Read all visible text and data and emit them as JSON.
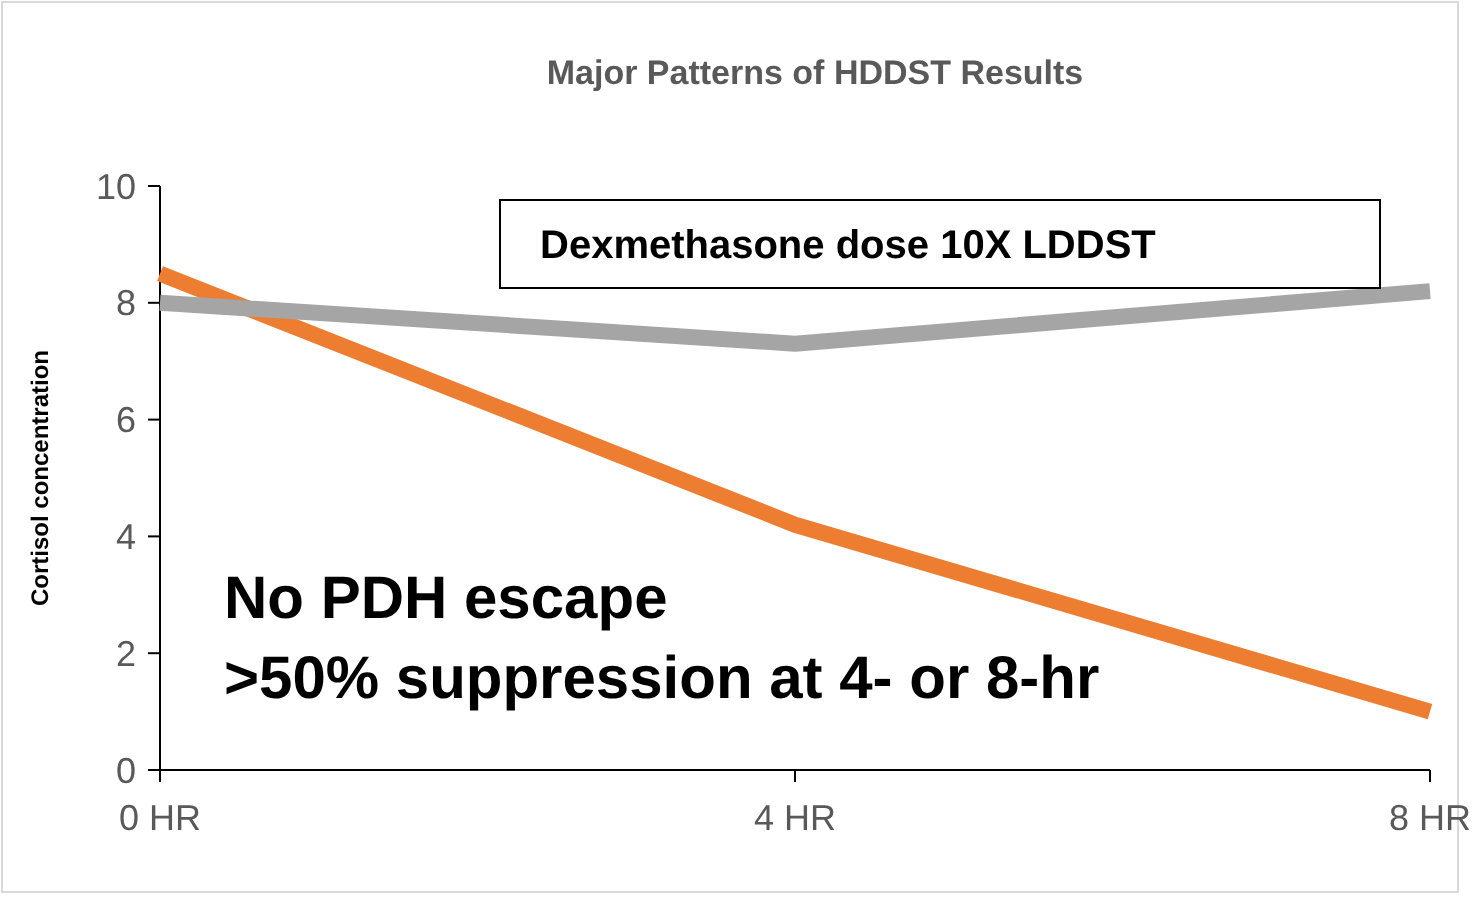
{
  "chart_data": {
    "type": "line",
    "title": "Major Patterns of HDDST Results",
    "ylabel": "Cortisol concentration",
    "categories": [
      "0 HR",
      "4 HR",
      "8 HR"
    ],
    "series": [
      {
        "color": "#ed7d31",
        "values": [
          8.5,
          4.2,
          1.0
        ]
      },
      {
        "color": "#a5a5a5",
        "values": [
          8.0,
          7.3,
          8.2
        ]
      }
    ],
    "ylim": [
      0,
      10
    ],
    "yticks": [
      0,
      2,
      4,
      6,
      8,
      10
    ],
    "grid": false,
    "marker": "none",
    "line_style": "solid",
    "annotations": [
      "Dexmethasone dose 10X LDDST",
      "No PDH escape",
      ">50% suppression at 4- or 8-hr"
    ]
  }
}
